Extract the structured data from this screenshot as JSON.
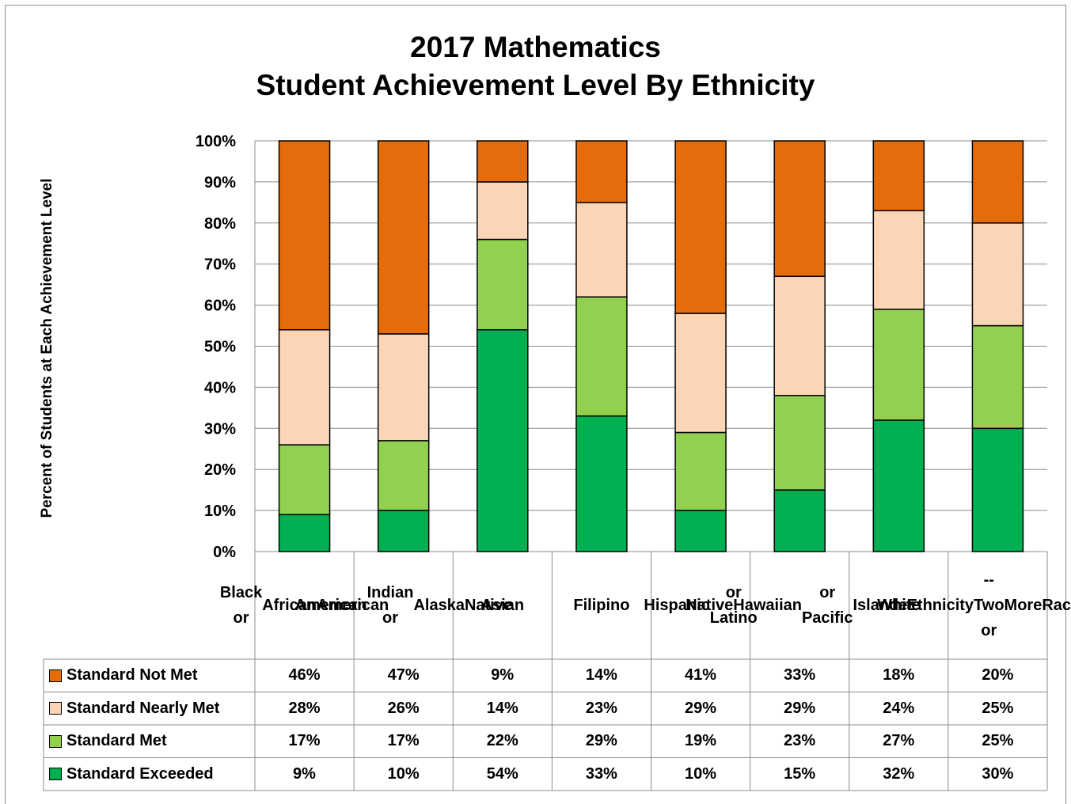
{
  "chart_data": {
    "type": "bar",
    "stacked": true,
    "title_line1": "2017 Mathematics",
    "title_line2": "Student Achievement Level By Ethnicity",
    "ylabel": "Percent of Students at Each Achievement Level",
    "ylim": [
      0,
      100
    ],
    "yticks": [
      "0%",
      "10%",
      "20%",
      "30%",
      "40%",
      "50%",
      "60%",
      "70%",
      "80%",
      "90%",
      "100%"
    ],
    "grid": true,
    "categories": [
      "Black or African American",
      "American Indian or Alaska Native",
      "Asian",
      "Filipino",
      "Hispanic or Latino",
      "Native Hawaiian or Pacific Islander",
      "White",
      "Ethnicity -- Two or More Races"
    ],
    "category_lines": [
      [
        "Black or",
        "African",
        "American"
      ],
      [
        "American",
        "Indian or",
        "Alaska",
        "Native"
      ],
      [
        "Asian"
      ],
      [
        "Filipino"
      ],
      [
        "Hispanic",
        "or Latino"
      ],
      [
        "Native",
        "Hawaiian",
        "or Pacific",
        "Islander"
      ],
      [
        "White"
      ],
      [
        "Ethnicity",
        "-- Two or",
        "More",
        "Races"
      ]
    ],
    "series": [
      {
        "name": "Standard Exceeded",
        "color": "#00b050",
        "values": [
          9,
          10,
          54,
          33,
          10,
          15,
          32,
          30
        ],
        "labels": [
          "9%",
          "10%",
          "54%",
          "33%",
          "10%",
          "15%",
          "32%",
          "30%"
        ]
      },
      {
        "name": "Standard Met",
        "color": "#92d050",
        "values": [
          17,
          17,
          22,
          29,
          19,
          23,
          27,
          25
        ],
        "labels": [
          "17%",
          "17%",
          "22%",
          "29%",
          "19%",
          "23%",
          "27%",
          "25%"
        ]
      },
      {
        "name": "Standard Nearly Met",
        "color": "#fbd5b5",
        "values": [
          28,
          26,
          14,
          23,
          29,
          29,
          24,
          25
        ],
        "labels": [
          "28%",
          "26%",
          "14%",
          "23%",
          "29%",
          "29%",
          "24%",
          "25%"
        ]
      },
      {
        "name": "Standard Not Met",
        "color": "#e46c0a",
        "values": [
          46,
          47,
          9,
          14,
          41,
          33,
          18,
          20
        ],
        "labels": [
          "46%",
          "47%",
          "9%",
          "14%",
          "41%",
          "33%",
          "18%",
          "20%"
        ]
      }
    ],
    "table_row_order": [
      "Standard Not Met",
      "Standard Nearly Met",
      "Standard Met",
      "Standard Exceeded"
    ]
  }
}
